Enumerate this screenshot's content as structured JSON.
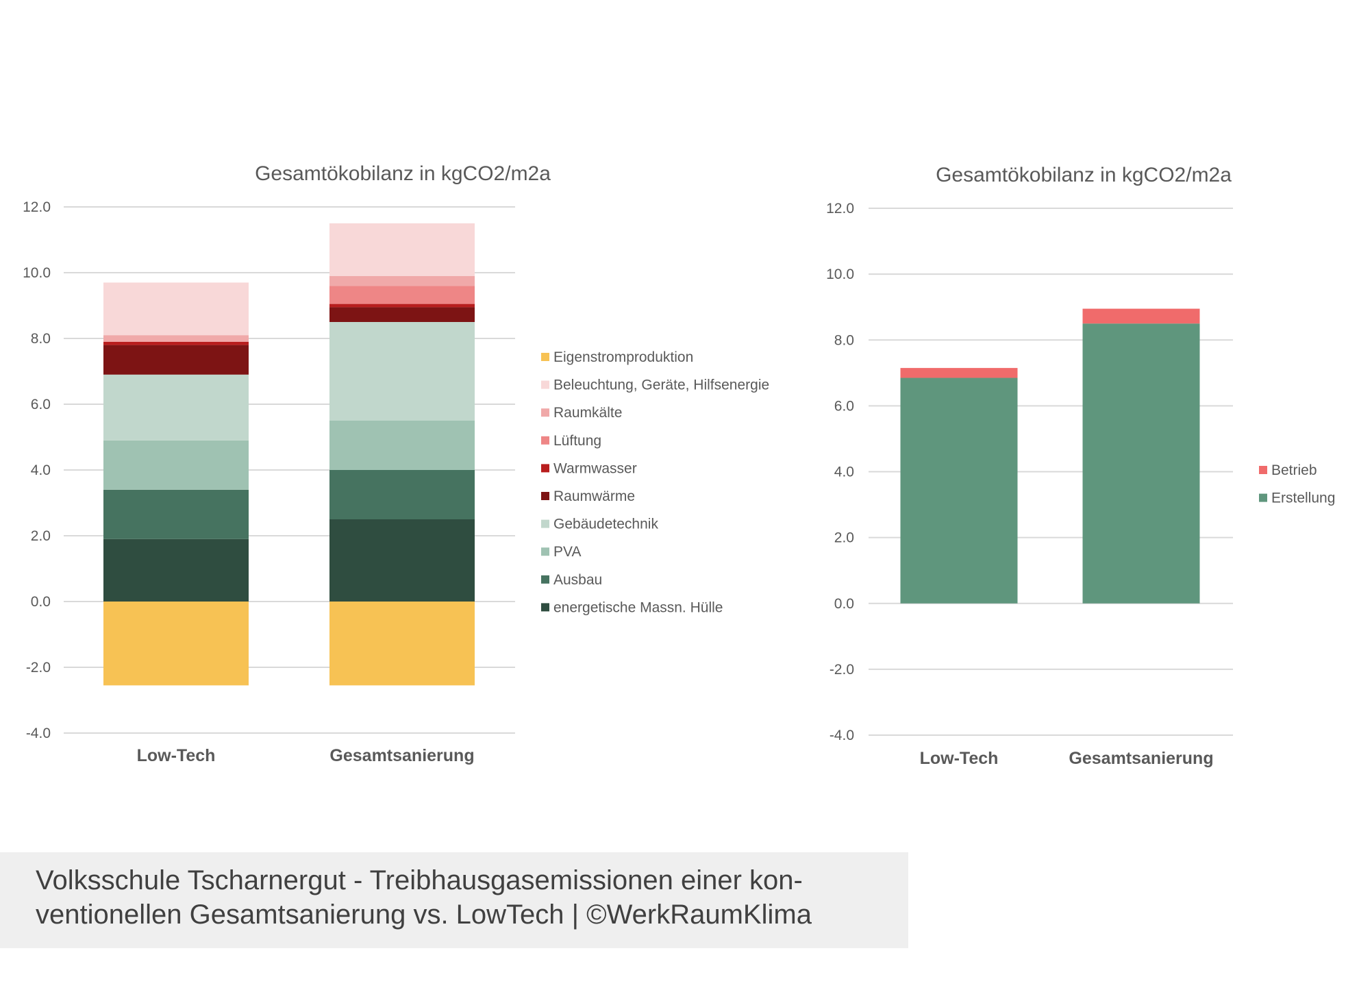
{
  "chart_data": [
    {
      "type": "bar",
      "stacked": true,
      "title": "Gesamtökobilanz in kgCO2/m2a",
      "categories": [
        "Low-Tech",
        "Gesamtsanierung"
      ],
      "ylim": [
        -4,
        12
      ],
      "yticks": [
        "12.0",
        "10.0",
        "8.0",
        "6.0",
        "4.0",
        "2.0",
        "0.0",
        "-2.0",
        "-4.0"
      ],
      "grid": true,
      "legend_position": "right",
      "series": [
        {
          "name": "energetische Massn. Hülle",
          "color": "#2f4d40",
          "values": [
            1.9,
            2.5
          ]
        },
        {
          "name": "Ausbau",
          "color": "#467360",
          "values": [
            1.5,
            1.5
          ]
        },
        {
          "name": "PVA",
          "color": "#9fc2b2",
          "values": [
            1.5,
            1.5
          ]
        },
        {
          "name": "Gebäudetechnik",
          "color": "#c1d7cc",
          "values": [
            2.0,
            3.0
          ]
        },
        {
          "name": "Raumwärme",
          "color": "#7d1414",
          "values": [
            0.9,
            0.45
          ]
        },
        {
          "name": "Warmwasser",
          "color": "#b81e1e",
          "values": [
            0.1,
            0.1
          ]
        },
        {
          "name": "Lüftung",
          "color": "#ee8686",
          "values": [
            0.0,
            0.55
          ]
        },
        {
          "name": "Raumkälte",
          "color": "#f0a9a9",
          "values": [
            0.2,
            0.3
          ]
        },
        {
          "name": "Beleuchtung, Geräte, Hilfsenergie",
          "color": "#f8d8d8",
          "values": [
            1.6,
            1.6
          ]
        },
        {
          "name": "Eigenstromproduktion",
          "color": "#f7c254",
          "values": [
            -2.55,
            -2.55
          ]
        }
      ]
    },
    {
      "type": "bar",
      "stacked": true,
      "title": "Gesamtökobilanz in kgCO2/m2a",
      "categories": [
        "Low-Tech",
        "Gesamtsanierung"
      ],
      "ylim": [
        -4,
        12
      ],
      "yticks": [
        "12.0",
        "10.0",
        "8.0",
        "6.0",
        "4.0",
        "2.0",
        "0.0",
        "-2.0",
        "-4.0"
      ],
      "grid": true,
      "legend_position": "right",
      "series": [
        {
          "name": "Erstellung",
          "color": "#5f967d",
          "values": [
            6.85,
            8.5
          ]
        },
        {
          "name": "Betrieb",
          "color": "#f06b6b",
          "values": [
            0.3,
            0.45
          ]
        }
      ]
    }
  ],
  "caption": "Volksschule Tscharnergut - Treibhausgasemissionen einer kon-ventionellen Gesamtsanierung vs. LowTech | ©WerkRaumKlima"
}
